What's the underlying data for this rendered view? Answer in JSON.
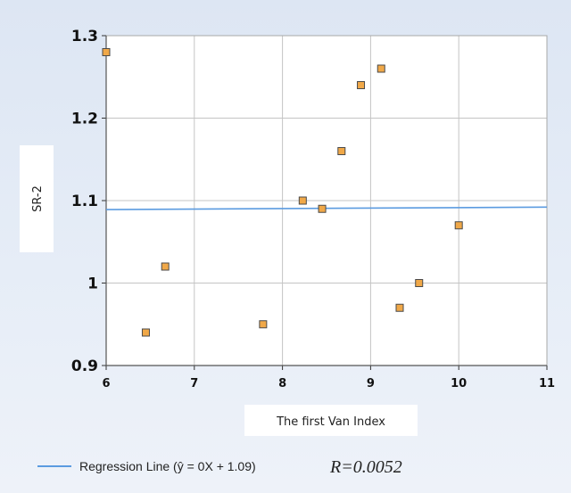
{
  "chart_data": {
    "type": "scatter",
    "xlabel": "The first Van Index",
    "ylabel": "SR-2",
    "xlim": [
      6,
      11
    ],
    "ylim": [
      0.9,
      1.3
    ],
    "x_ticks": [
      "6",
      "7",
      "8",
      "9",
      "10",
      "11"
    ],
    "y_ticks": [
      "0.9",
      "1",
      "1.1",
      "1.2",
      "1.3"
    ],
    "grid": true,
    "points": [
      {
        "x": 6.0,
        "y": 1.28
      },
      {
        "x": 6.45,
        "y": 0.94
      },
      {
        "x": 6.67,
        "y": 1.02
      },
      {
        "x": 7.78,
        "y": 0.95
      },
      {
        "x": 8.23,
        "y": 1.1
      },
      {
        "x": 8.45,
        "y": 1.09
      },
      {
        "x": 8.67,
        "y": 1.16
      },
      {
        "x": 8.89,
        "y": 1.24
      },
      {
        "x": 9.12,
        "y": 1.26
      },
      {
        "x": 9.33,
        "y": 0.97
      },
      {
        "x": 9.55,
        "y": 1.0
      },
      {
        "x": 10.0,
        "y": 1.07
      }
    ],
    "regression": {
      "slope": 0.0006,
      "intercept": 1.0855
    },
    "legend": {
      "position": "bottom-left",
      "label": "Regression Line (ŷ = 0X + 1.09)"
    },
    "annotation": "R=0.0052",
    "colors": {
      "point_fill": "#f0a848",
      "point_stroke": "#4a4a4a",
      "line": "#5b9be0",
      "grid": "#c4c4c4",
      "plot_bg": "#ffffff"
    }
  }
}
